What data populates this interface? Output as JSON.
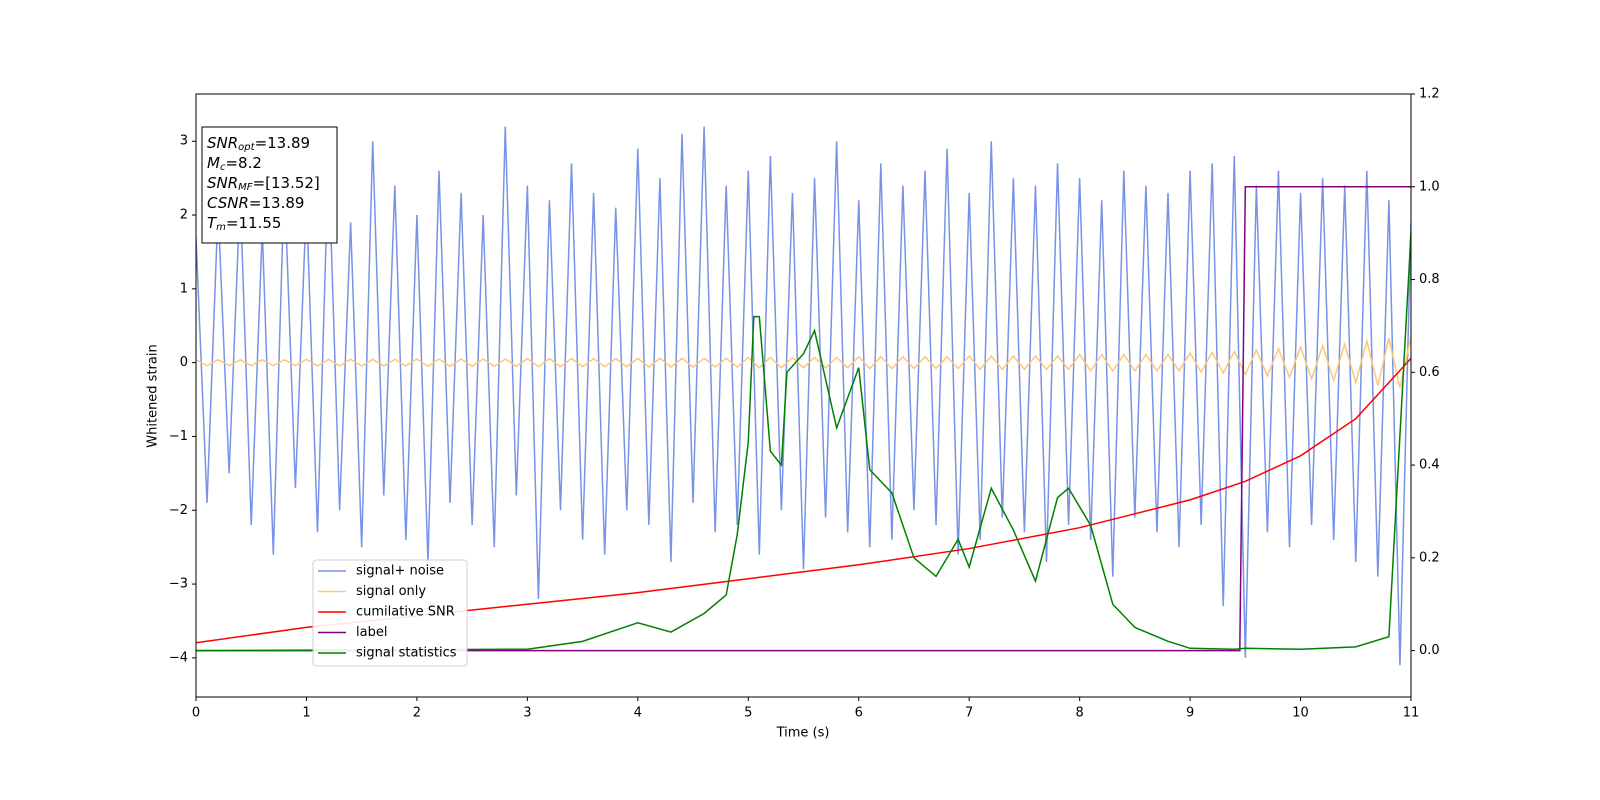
{
  "chart_data": {
    "type": "line",
    "xlabel": "Time (s)",
    "ylabel": "Whitened strain",
    "xlim": [
      0,
      11
    ],
    "xticks": [
      0,
      1,
      2,
      3,
      4,
      5,
      6,
      7,
      8,
      9,
      10,
      11
    ],
    "ylim": [
      -4.53,
      3.64
    ],
    "yticks": [
      {
        "value": -4,
        "label": "−4"
      },
      {
        "value": -3,
        "label": "−3"
      },
      {
        "value": -2,
        "label": "−2"
      },
      {
        "value": -1,
        "label": "−1"
      },
      0,
      1,
      2,
      3
    ],
    "y2lim": [
      -0.1,
      1.2
    ],
    "y2ticks": [
      {
        "value": 0,
        "label": "0.0"
      },
      0.2,
      0.4,
      0.6,
      0.8,
      {
        "value": 1,
        "label": "1.0"
      },
      1.2
    ],
    "legend": "lower left",
    "annotation_lines": [
      {
        "main": "SNR",
        "sub": "opt",
        "rest": "=13.89"
      },
      {
        "main": "M",
        "sub": "c",
        "rest": "=8.2"
      },
      {
        "main": "SNR",
        "sub": "MF",
        "rest": "=[13.52]"
      },
      {
        "main": "CSNR",
        "rest": "=13.89"
      },
      {
        "main": "T",
        "sub": "m",
        "rest": "=11.55"
      }
    ],
    "x": [
      0,
      0.1,
      0.2,
      0.3,
      0.4,
      0.5,
      0.6,
      0.7,
      0.8,
      0.9,
      1,
      1.1,
      1.2,
      1.3,
      1.4,
      1.5,
      1.6,
      1.7,
      1.8,
      1.9,
      2,
      2.1,
      2.2,
      2.3,
      2.4,
      2.5,
      2.6,
      2.7,
      2.8,
      2.9,
      3,
      3.1,
      3.2,
      3.3,
      3.4,
      3.5,
      3.6,
      3.7,
      3.8,
      3.9,
      4,
      4.1,
      4.2,
      4.3,
      4.4,
      4.5,
      4.6,
      4.7,
      4.8,
      4.9,
      5,
      5.1,
      5.2,
      5.3,
      5.4,
      5.5,
      5.6,
      5.7,
      5.8,
      5.9,
      6,
      6.1,
      6.2,
      6.3,
      6.4,
      6.5,
      6.6,
      6.7,
      6.8,
      6.9,
      7,
      7.1,
      7.2,
      7.3,
      7.4,
      7.5,
      7.6,
      7.7,
      7.8,
      7.9,
      8,
      8.1,
      8.2,
      8.3,
      8.4,
      8.5,
      8.6,
      8.7,
      8.8,
      8.9,
      9,
      9.1,
      9.2,
      9.3,
      9.4,
      9.5,
      9.6,
      9.7,
      9.8,
      9.9,
      10,
      10.1,
      10.2,
      10.3,
      10.4,
      10.5,
      10.6,
      10.7,
      10.8,
      10.9,
      11
    ],
    "series": [
      {
        "name": "signal+ noise",
        "color": "#7893e6",
        "values": [
          1.7,
          -1.9,
          2.1,
          -1.5,
          2.3,
          -2.2,
          1.8,
          -2.6,
          2.5,
          -1.7,
          2.2,
          -2.3,
          2.8,
          -2.0,
          1.9,
          -2.5,
          3.0,
          -1.8,
          2.4,
          -2.4,
          2.0,
          -2.7,
          2.6,
          -1.9,
          2.3,
          -2.2,
          2.0,
          -2.5,
          3.2,
          -1.8,
          2.4,
          -3.2,
          2.2,
          -2.0,
          2.7,
          -2.4,
          2.3,
          -2.6,
          2.1,
          -2.0,
          2.9,
          -2.2,
          2.5,
          -2.7,
          3.1,
          -1.9,
          3.2,
          -2.3,
          2.4,
          -2.2,
          2.6,
          -2.6,
          2.8,
          -2.0,
          2.3,
          -2.8,
          2.5,
          -2.1,
          3.0,
          -2.3,
          2.2,
          -2.5,
          2.7,
          -2.4,
          2.4,
          -2.0,
          2.6,
          -2.2,
          2.9,
          -2.6,
          2.3,
          -2.4,
          3.0,
          -2.1,
          2.5,
          -2.3,
          2.4,
          -2.7,
          2.7,
          -2.2,
          2.5,
          -2.4,
          2.2,
          -2.9,
          2.6,
          -2.1,
          2.4,
          -2.3,
          2.3,
          -2.5,
          2.6,
          -2.2,
          2.7,
          -3.3,
          2.8,
          -4.0,
          2.4,
          -2.3,
          2.6,
          -2.5,
          2.3,
          -2.2,
          2.5,
          -2.4,
          2.4,
          -2.7,
          2.6,
          -2.9,
          2.2,
          -4.1,
          1.9
        ]
      },
      {
        "name": "signal only",
        "color": "#fcc878",
        "values": [
          0.04,
          -0.04,
          0.04,
          -0.04,
          0.04,
          -0.04,
          0.04,
          -0.04,
          0.04,
          -0.04,
          0.045,
          -0.045,
          0.045,
          -0.045,
          0.045,
          -0.045,
          0.045,
          -0.045,
          0.045,
          -0.045,
          0.05,
          -0.05,
          0.05,
          -0.05,
          0.05,
          -0.05,
          0.05,
          -0.05,
          0.05,
          -0.05,
          0.055,
          -0.055,
          0.055,
          -0.055,
          0.055,
          -0.055,
          0.055,
          -0.055,
          0.055,
          -0.055,
          0.06,
          -0.06,
          0.06,
          -0.06,
          0.06,
          -0.06,
          0.06,
          -0.06,
          0.06,
          -0.06,
          0.07,
          -0.07,
          0.07,
          -0.07,
          0.07,
          -0.07,
          0.07,
          -0.07,
          0.07,
          -0.07,
          0.08,
          -0.08,
          0.08,
          -0.08,
          0.08,
          -0.08,
          0.08,
          -0.08,
          0.08,
          -0.08,
          0.09,
          -0.09,
          0.09,
          -0.09,
          0.09,
          -0.09,
          0.09,
          -0.09,
          0.09,
          -0.09,
          0.11,
          -0.11,
          0.11,
          -0.11,
          0.11,
          -0.11,
          0.11,
          -0.11,
          0.11,
          -0.11,
          0.13,
          -0.13,
          0.14,
          -0.14,
          0.15,
          -0.16,
          0.17,
          -0.18,
          0.19,
          -0.2,
          0.21,
          -0.22,
          0.23,
          -0.24,
          0.25,
          -0.27,
          0.29,
          -0.31,
          0.33,
          -0.34,
          0.36
        ]
      },
      {
        "name": "cumilative SNR",
        "color": "#ff0000",
        "axis": "y2",
        "x": [
          0,
          1,
          2,
          3,
          4,
          5,
          6,
          7,
          8,
          9,
          9.5,
          10,
          10.5,
          11
        ],
        "values": [
          0.017,
          0.05,
          0.075,
          0.1,
          0.125,
          0.155,
          0.185,
          0.22,
          0.265,
          0.325,
          0.365,
          0.42,
          0.5,
          0.63
        ]
      },
      {
        "name": "label",
        "color": "#800080",
        "axis": "y2",
        "x": [
          0,
          9.45,
          9.5,
          11
        ],
        "values": [
          0,
          0,
          1,
          1
        ]
      },
      {
        "name": "signal statistics",
        "color": "#008000",
        "axis": "y2",
        "x": [
          0,
          3,
          3.5,
          4,
          4.3,
          4.6,
          4.8,
          4.9,
          5,
          5.05,
          5.1,
          5.2,
          5.3,
          5.35,
          5.5,
          5.6,
          5.8,
          6,
          6.1,
          6.3,
          6.5,
          6.7,
          6.9,
          7,
          7.2,
          7.4,
          7.6,
          7.8,
          7.9,
          8.1,
          8.3,
          8.5,
          8.8,
          9,
          9.4,
          9.5,
          10,
          10.5,
          10.8,
          11
        ],
        "values": [
          0,
          0.003,
          0.02,
          0.06,
          0.04,
          0.08,
          0.12,
          0.25,
          0.45,
          0.72,
          0.72,
          0.43,
          0.4,
          0.6,
          0.64,
          0.69,
          0.48,
          0.61,
          0.39,
          0.34,
          0.2,
          0.16,
          0.24,
          0.18,
          0.35,
          0.26,
          0.15,
          0.33,
          0.35,
          0.27,
          0.1,
          0.05,
          0.02,
          0.005,
          0.003,
          0.005,
          0.003,
          0.008,
          0.03,
          0.9
        ]
      }
    ]
  }
}
